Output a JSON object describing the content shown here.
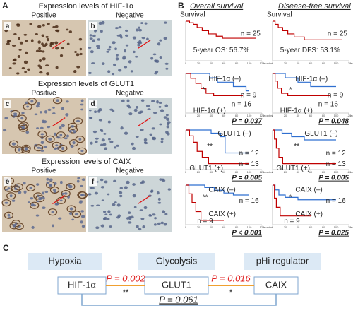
{
  "panel_a": {
    "label": "A",
    "sections": [
      {
        "title": "Expression levels of  HIF-1α",
        "positive": "Positive",
        "negative": "Negative",
        "images": [
          "a",
          "b"
        ]
      },
      {
        "title": "Expression levels of  GLUT1",
        "positive": "Positive",
        "negative": "Negative",
        "images": [
          "c",
          "d"
        ]
      },
      {
        "title": "Expression levels of  CAIX",
        "positive": "Positive",
        "negative": "Negative",
        "images": [
          "e",
          "f"
        ]
      }
    ]
  },
  "panel_b": {
    "label": "B",
    "x_label": "months",
    "x_ticks": [
      0,
      20,
      40,
      60,
      80,
      100,
      120
    ],
    "xlim": [
      0,
      120
    ],
    "ylim": [
      0,
      1
    ],
    "columns": [
      {
        "title": "Overall survival",
        "y_label": "Survival",
        "plots": [
          {
            "texts": [
              "n = 25",
              "5-year OS: 56.7%"
            ],
            "curves": [
              {
                "color": "#c00000",
                "points": [
                  [
                    0,
                    1
                  ],
                  [
                    6,
                    0.96
                  ],
                  [
                    12,
                    0.92
                  ],
                  [
                    18,
                    0.84
                  ],
                  [
                    26,
                    0.76
                  ],
                  [
                    36,
                    0.68
                  ],
                  [
                    48,
                    0.62
                  ],
                  [
                    58,
                    0.57
                  ],
                  [
                    110,
                    0.57
                  ]
                ]
              }
            ]
          },
          {
            "texts": [
              "HIF-1α (–)",
              "*",
              "n = 9",
              "n = 16",
              "HIF-1α (+)"
            ],
            "p": "P = 0.037",
            "curves": [
              {
                "color": "#2f6fd0",
                "points": [
                  [
                    0,
                    1
                  ],
                  [
                    38,
                    0.89
                  ],
                  [
                    50,
                    0.78
                  ],
                  [
                    75,
                    0.67
                  ],
                  [
                    95,
                    0.56
                  ],
                  [
                    100,
                    0.56
                  ]
                ]
              },
              {
                "color": "#c00000",
                "points": [
                  [
                    0,
                    1
                  ],
                  [
                    8,
                    0.88
                  ],
                  [
                    16,
                    0.75
                  ],
                  [
                    24,
                    0.62
                  ],
                  [
                    32,
                    0.5
                  ],
                  [
                    44,
                    0.44
                  ],
                  [
                    90,
                    0.44
                  ]
                ]
              }
            ]
          },
          {
            "texts": [
              "GLUT1 (–)",
              "**",
              "n = 12",
              "n = 13",
              "GLUT1 (+)"
            ],
            "p": "P = 0.005",
            "curves": [
              {
                "color": "#2f6fd0",
                "points": [
                  [
                    0,
                    1
                  ],
                  [
                    40,
                    0.92
                  ],
                  [
                    55,
                    0.83
                  ],
                  [
                    62,
                    0.42
                  ],
                  [
                    100,
                    0.42
                  ]
                ]
              },
              {
                "color": "#c00000",
                "points": [
                  [
                    0,
                    1
                  ],
                  [
                    6,
                    0.85
                  ],
                  [
                    12,
                    0.69
                  ],
                  [
                    18,
                    0.46
                  ],
                  [
                    26,
                    0.31
                  ],
                  [
                    36,
                    0.15
                  ],
                  [
                    100,
                    0.15
                  ]
                ]
              }
            ]
          },
          {
            "texts": [
              "CAIX (–)",
              "**",
              "n = 16",
              "CAIX (+)",
              "n = 9"
            ],
            "p": "P < 0.001",
            "curves": [
              {
                "color": "#2f6fd0",
                "points": [
                  [
                    0,
                    1
                  ],
                  [
                    30,
                    0.94
                  ],
                  [
                    45,
                    0.87
                  ],
                  [
                    60,
                    0.8
                  ],
                  [
                    75,
                    0.75
                  ],
                  [
                    100,
                    0.75
                  ]
                ]
              },
              {
                "color": "#c00000",
                "points": [
                  [
                    0,
                    1
                  ],
                  [
                    5,
                    0.78
                  ],
                  [
                    10,
                    0.56
                  ],
                  [
                    16,
                    0.33
                  ],
                  [
                    24,
                    0.11
                  ],
                  [
                    60,
                    0.11
                  ]
                ]
              }
            ]
          }
        ]
      },
      {
        "title": "Disease-free survival",
        "y_label": "Survival",
        "plots": [
          {
            "texts": [
              "n = 25",
              "5-year DFS: 53.1%"
            ],
            "curves": [
              {
                "color": "#c00000",
                "points": [
                  [
                    0,
                    1
                  ],
                  [
                    4,
                    0.92
                  ],
                  [
                    9,
                    0.84
                  ],
                  [
                    16,
                    0.76
                  ],
                  [
                    24,
                    0.68
                  ],
                  [
                    34,
                    0.6
                  ],
                  [
                    50,
                    0.53
                  ],
                  [
                    110,
                    0.53
                  ]
                ]
              }
            ]
          },
          {
            "texts": [
              "HIF-1α (–)",
              "*",
              "n = 9",
              "n = 16",
              "HIF-1α (+)"
            ],
            "p": "P = 0.048",
            "curves": [
              {
                "color": "#2f6fd0",
                "points": [
                  [
                    0,
                    1
                  ],
                  [
                    20,
                    0.89
                  ],
                  [
                    40,
                    0.78
                  ],
                  [
                    60,
                    0.67
                  ],
                  [
                    100,
                    0.67
                  ]
                ]
              },
              {
                "color": "#c00000",
                "points": [
                  [
                    0,
                    1
                  ],
                  [
                    4,
                    0.81
                  ],
                  [
                    8,
                    0.63
                  ],
                  [
                    14,
                    0.5
                  ],
                  [
                    24,
                    0.44
                  ],
                  [
                    90,
                    0.44
                  ]
                ]
              }
            ]
          },
          {
            "texts": [
              "GLUT1 (–)",
              "**",
              "n = 12",
              "n = 13",
              "GLUT1 (+)"
            ],
            "p": "P = 0.005",
            "curves": [
              {
                "color": "#2f6fd0",
                "points": [
                  [
                    0,
                    1
                  ],
                  [
                    15,
                    0.92
                  ],
                  [
                    30,
                    0.83
                  ],
                  [
                    50,
                    0.75
                  ],
                  [
                    100,
                    0.75
                  ]
                ]
              },
              {
                "color": "#c00000",
                "points": [
                  [
                    0,
                    1
                  ],
                  [
                    3,
                    0.77
                  ],
                  [
                    6,
                    0.54
                  ],
                  [
                    10,
                    0.31
                  ],
                  [
                    16,
                    0.15
                  ],
                  [
                    100,
                    0.15
                  ]
                ]
              }
            ]
          },
          {
            "texts": [
              "CAIX (–)",
              "*",
              "n = 16",
              "CAIX (+)",
              "n = 9"
            ],
            "p": "P = 0.025",
            "curves": [
              {
                "color": "#2f6fd0",
                "points": [
                  [
                    0,
                    1
                  ],
                  [
                    4,
                    0.88
                  ],
                  [
                    10,
                    0.75
                  ],
                  [
                    20,
                    0.69
                  ],
                  [
                    40,
                    0.63
                  ],
                  [
                    100,
                    0.63
                  ]
                ]
              },
              {
                "color": "#c00000",
                "points": [
                  [
                    0,
                    1
                  ],
                  [
                    3,
                    0.67
                  ],
                  [
                    6,
                    0.44
                  ],
                  [
                    12,
                    0.22
                  ],
                  [
                    60,
                    0.22
                  ]
                ]
              }
            ]
          }
        ]
      }
    ]
  },
  "panel_c": {
    "label": "C",
    "categories": [
      "Hypoxia",
      "Glycolysis",
      "pHi regulator"
    ],
    "nodes": [
      "HIF-1α",
      "GLUT1",
      "CAIX"
    ],
    "links": [
      {
        "p": "P = 0.002",
        "sig": "**"
      },
      {
        "p": "P = 0.016",
        "sig": "*"
      },
      {
        "p": "P = 0.061"
      }
    ]
  }
}
